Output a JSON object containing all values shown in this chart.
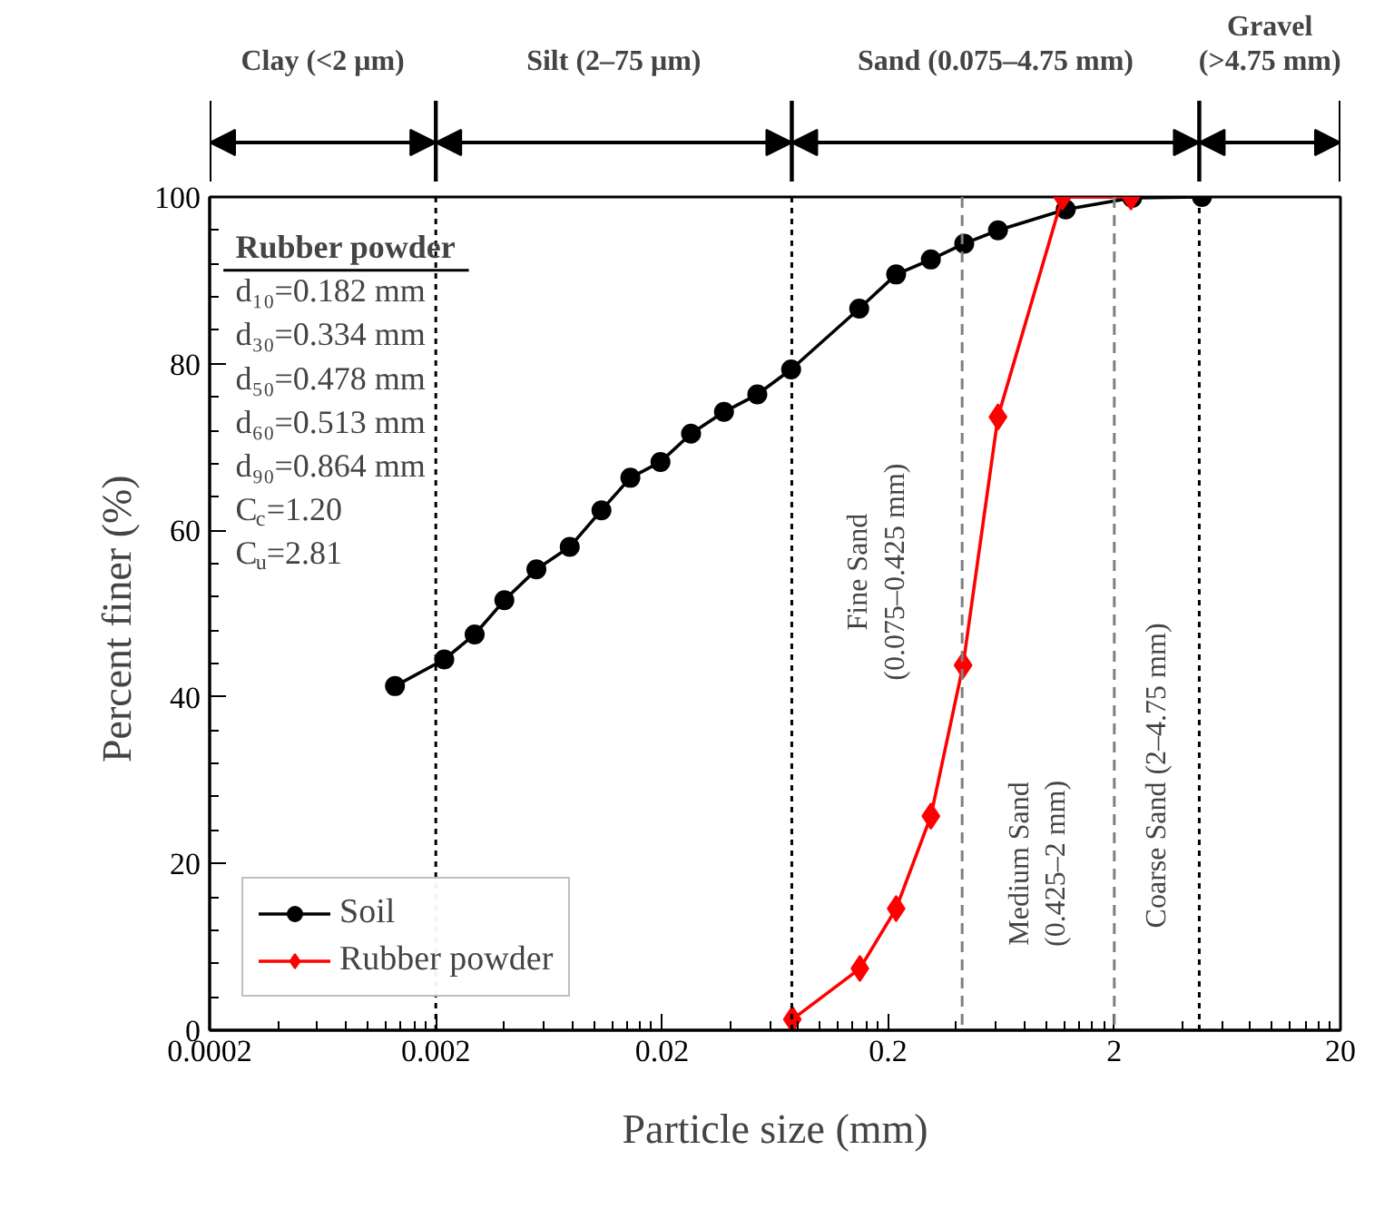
{
  "chart_data": {
    "type": "line",
    "xlabel": "Particle size (mm)",
    "ylabel": "Percent  finer (%)",
    "log": "x",
    "xlim": [
      0.0002,
      20
    ],
    "xticks": [
      0.0002,
      0.002,
      0.02,
      0.2,
      2,
      20
    ],
    "ylim": [
      0,
      100
    ],
    "yticks": [
      0,
      20,
      40,
      60,
      80,
      100
    ],
    "grid": false,
    "legend": "bottom left",
    "line_style": "solid",
    "series": [
      {
        "name": "Soil",
        "color": "#000000",
        "marker": "circle",
        "x": [
          0.00132,
          0.00218,
          0.00297,
          0.00402,
          0.00557,
          0.00782,
          0.0108,
          0.0145,
          0.0197,
          0.0269,
          0.0376,
          0.0528,
          0.0745,
          0.149,
          0.217,
          0.309,
          0.434,
          0.612,
          1.22,
          2.4,
          4.88
        ],
        "values": [
          41.3,
          44.5,
          47.5,
          51.6,
          55.3,
          58.0,
          62.4,
          66.3,
          68.2,
          71.6,
          74.2,
          76.3,
          79.3,
          86.6,
          90.7,
          92.5,
          94.4,
          96.0,
          98.5,
          99.9,
          100
        ]
      },
      {
        "name": "Rubber powder",
        "color": "#ff0000",
        "marker": "diamond",
        "x": [
          0.0754,
          0.15,
          0.217,
          0.309,
          0.429,
          0.612,
          1.18,
          2.37
        ],
        "values": [
          1.3,
          7.4,
          14.6,
          25.7,
          43.8,
          73.6,
          100,
          100
        ]
      }
    ],
    "ref_lines": [
      {
        "axis": "x",
        "value": 0.002,
        "color": "#000000",
        "line_style": "dotted"
      },
      {
        "axis": "x",
        "value": 0.075,
        "color": "#000000",
        "line_style": "dotted"
      },
      {
        "axis": "x",
        "value": 0.425,
        "color": "#808080",
        "line_style": "dashed"
      },
      {
        "axis": "x",
        "value": 2,
        "color": "#808080",
        "line_style": "dashed"
      },
      {
        "axis": "x",
        "value": 4.75,
        "color": "#000000",
        "line_style": "dotted"
      }
    ],
    "annotations": [
      "Clay (<2 μm)",
      "Silt (2–75 μm)",
      "Sand (0.075–4.75 mm)",
      "Gravel\n(>4.75 mm)",
      "Rubber powder",
      "d₁₀=0.182 mm",
      "d₃₀=0.334 mm",
      "d₅₀=0.478 mm",
      "d₆₀=0.513 mm",
      "d₉₀=0.864 mm",
      "C$_{c}$=1.20",
      "C$_{u}$=2.81",
      "Fine Sand\n(0.075–0.425 mm)",
      "Medium Sand\n(0.425–2 mm)",
      "Coarse Sand  (2–4.75 mm)"
    ]
  }
}
